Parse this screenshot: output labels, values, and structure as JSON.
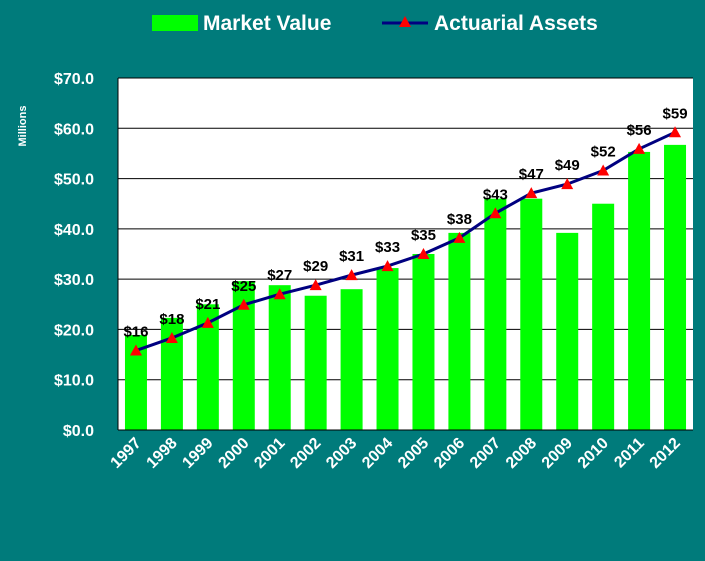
{
  "chart_data": {
    "type": "bar_line",
    "y_axis_label": "Millions",
    "categories": [
      "1997",
      "1998",
      "1999",
      "2000",
      "2001",
      "2002",
      "2003",
      "2004",
      "2005",
      "2006",
      "2007",
      "2008",
      "2009",
      "2010",
      "2011",
      "2012"
    ],
    "series": [
      {
        "name": "Market Value",
        "type": "bar",
        "color": "#00ff00",
        "values": [
          18.9,
          22.3,
          25.0,
          29.6,
          28.8,
          26.7,
          28.0,
          32.2,
          35.0,
          39.2,
          46.0,
          46.0,
          39.2,
          45.0,
          55.3,
          56.7
        ]
      },
      {
        "name": "Actuarial Assets",
        "type": "line",
        "color": "#000080",
        "marker_color": "#ff0000",
        "values": [
          15.8,
          18.3,
          21.3,
          24.9,
          27.0,
          28.8,
          30.8,
          32.6,
          35.0,
          38.2,
          43.1,
          47.1,
          48.9,
          51.6,
          55.9,
          59.2
        ],
        "value_labels": [
          "$16",
          "$18",
          "$21",
          "$25",
          "$27",
          "$29",
          "$31",
          "$33",
          "$35",
          "$38",
          "$43",
          "$47",
          "$49",
          "$52",
          "$56",
          "$59"
        ]
      }
    ],
    "ylim": [
      0,
      70
    ],
    "yticks": [
      {
        "value": 0,
        "label": "$0.0"
      },
      {
        "value": 10,
        "label": "$10.0"
      },
      {
        "value": 20,
        "label": "$20.0"
      },
      {
        "value": 30,
        "label": "$30.0"
      },
      {
        "value": 40,
        "label": "$40.0"
      },
      {
        "value": 50,
        "label": "$50.0"
      },
      {
        "value": 60,
        "label": "$60.0"
      },
      {
        "value": 70,
        "label": "$70.0"
      }
    ],
    "grid": true,
    "legend": "top"
  }
}
